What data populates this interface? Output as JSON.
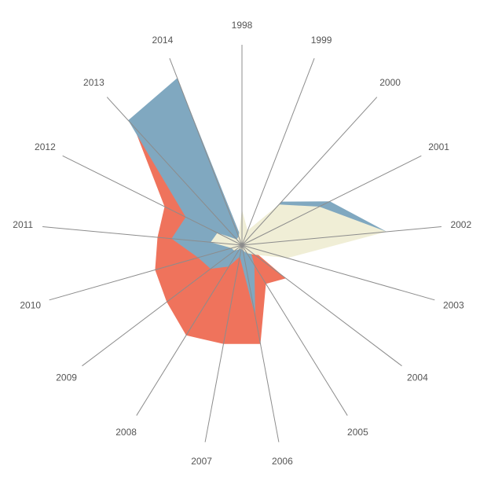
{
  "chart_data": {
    "type": "area",
    "subtype": "radial-stacked-area",
    "title": "",
    "xlabel": "",
    "ylabel": "",
    "x": [
      "1998",
      "1999",
      "2000",
      "2001",
      "2002",
      "2003",
      "2004",
      "2005",
      "2006",
      "2007",
      "2008",
      "2009",
      "2010",
      "2011",
      "2012",
      "2013",
      "2014"
    ],
    "radial_max": 250,
    "grid": false,
    "legend": "none",
    "series": [
      {
        "color": "#d0e9ec",
        "values": [
          7,
          4,
          3,
          2,
          2,
          4,
          8,
          6,
          10,
          8,
          18,
          30,
          46,
          42,
          55,
          60,
          64
        ]
      },
      {
        "color": "#ef735c",
        "values": [
          7,
          4,
          3,
          2,
          2,
          10,
          70,
          58,
          128,
          128,
          135,
          120,
          115,
          108,
          110,
          205,
          170
        ]
      },
      {
        "color": "#80a8c0",
        "values": [
          7,
          12,
          75,
          125,
          185,
          40,
          14,
          30,
          92,
          15,
          32,
          50,
          58,
          90,
          80,
          215,
          228
        ]
      },
      {
        "color": "#f0eed6",
        "values": [
          45,
          20,
          70,
          110,
          185,
          60,
          20,
          12,
          7,
          5,
          6,
          12,
          14,
          40,
          35,
          10,
          12
        ]
      }
    ]
  }
}
